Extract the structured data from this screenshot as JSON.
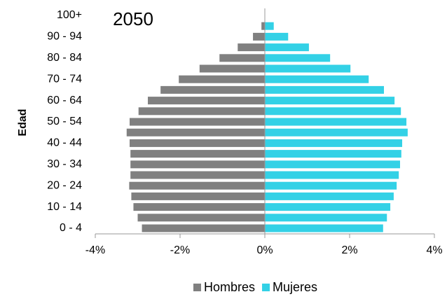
{
  "chart_data": {
    "type": "pyramid",
    "title": "2050",
    "y_label": "Edad",
    "categories": [
      "0 - 4",
      null,
      "10 - 14",
      null,
      "20 - 24",
      null,
      "30 - 34",
      null,
      "40 - 44",
      null,
      "50 - 54",
      null,
      "60 - 64",
      null,
      "70 - 74",
      null,
      "80 - 84",
      null,
      "90 - 94",
      null,
      "100+"
    ],
    "series": [
      {
        "name": "Hombres",
        "color": "#808080",
        "values": [
          -2.9,
          -3.0,
          -3.1,
          -3.15,
          -3.2,
          -3.17,
          -3.17,
          -3.17,
          -3.19,
          -3.26,
          -3.19,
          -2.98,
          -2.76,
          -2.46,
          -2.03,
          -1.54,
          -1.07,
          -0.64,
          -0.28,
          -0.08,
          0
        ]
      },
      {
        "name": "Mujeres",
        "color": "#33d1e6",
        "values": [
          2.79,
          2.88,
          2.96,
          3.04,
          3.11,
          3.16,
          3.19,
          3.22,
          3.24,
          3.37,
          3.34,
          3.21,
          3.06,
          2.81,
          2.45,
          2.02,
          1.54,
          1.04,
          0.55,
          0.21,
          0
        ]
      }
    ],
    "xlim": [
      -4,
      4
    ],
    "xticks": [
      {
        "value": -4,
        "label": "-4%"
      },
      {
        "value": -2,
        "label": "-2%"
      },
      {
        "value": 0,
        "label": "0%"
      },
      {
        "value": 2,
        "label": "2%"
      },
      {
        "value": 4,
        "label": "4%"
      }
    ],
    "legend": "bottom"
  }
}
